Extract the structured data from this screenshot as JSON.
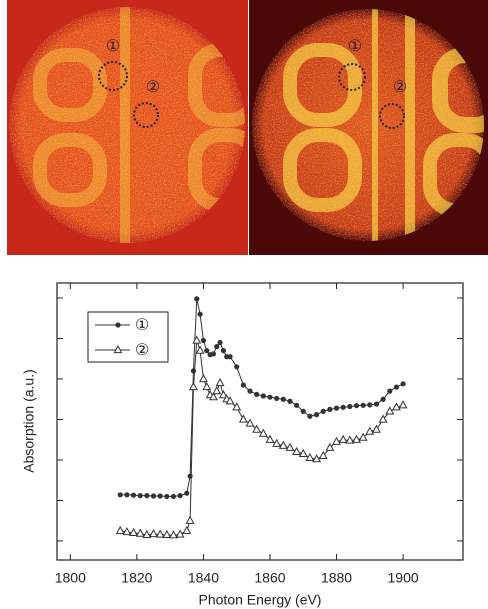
{
  "images": [
    {
      "labels": [
        "①",
        "②"
      ]
    },
    {
      "labels": [
        "①",
        "②"
      ]
    }
  ],
  "chart_data": {
    "type": "line",
    "x_label": "Photon Energy (eV)",
    "y_label": "Absorption (a.u.)",
    "x": [
      1815,
      1817,
      1819,
      1821,
      1823,
      1825,
      1827,
      1829,
      1831,
      1833,
      1835,
      1836,
      1837,
      1838,
      1839,
      1840,
      1841,
      1842,
      1843,
      1844,
      1845,
      1846,
      1847,
      1848,
      1850,
      1852,
      1854,
      1856,
      1858,
      1860,
      1862,
      1864,
      1866,
      1868,
      1870,
      1872,
      1874,
      1876,
      1878,
      1880,
      1882,
      1884,
      1886,
      1888,
      1890,
      1892,
      1894,
      1896,
      1898,
      1900
    ],
    "series": [
      {
        "name": "①",
        "color": "#333333",
        "marker": "circle",
        "values": [
          1.14,
          1.14,
          1.13,
          1.12,
          1.12,
          1.11,
          1.11,
          1.1,
          1.1,
          1.12,
          1.18,
          1.6,
          4.2,
          5.98,
          5.6,
          4.95,
          4.7,
          4.6,
          4.62,
          4.8,
          4.9,
          4.7,
          4.55,
          4.55,
          4.3,
          3.85,
          3.7,
          3.62,
          3.58,
          3.55,
          3.52,
          3.5,
          3.45,
          3.35,
          3.2,
          3.08,
          3.12,
          3.2,
          3.25,
          3.28,
          3.3,
          3.32,
          3.34,
          3.35,
          3.36,
          3.38,
          3.5,
          3.7,
          3.8,
          3.88
        ]
      },
      {
        "name": "②",
        "color": "#333333",
        "marker": "triangle",
        "values": [
          0.25,
          0.22,
          0.2,
          0.18,
          0.15,
          0.17,
          0.16,
          0.15,
          0.14,
          0.16,
          0.25,
          0.5,
          3.8,
          4.95,
          4.7,
          4.0,
          3.8,
          3.6,
          3.55,
          3.7,
          3.9,
          3.6,
          3.5,
          3.45,
          3.3,
          3.0,
          2.9,
          2.75,
          2.65,
          2.5,
          2.4,
          2.35,
          2.3,
          2.2,
          2.15,
          2.05,
          2.02,
          2.1,
          2.3,
          2.45,
          2.5,
          2.48,
          2.5,
          2.55,
          2.7,
          2.75,
          3.0,
          3.2,
          3.3,
          3.35
        ]
      }
    ],
    "xlim": [
      1796,
      1918
    ],
    "xticks": [
      1800,
      1820,
      1840,
      1860,
      1880,
      1900
    ],
    "ylim": [
      -0.47,
      6.37
    ],
    "yticks": [
      0,
      1,
      2,
      3,
      4,
      5,
      6
    ],
    "legend": "upper left"
  }
}
